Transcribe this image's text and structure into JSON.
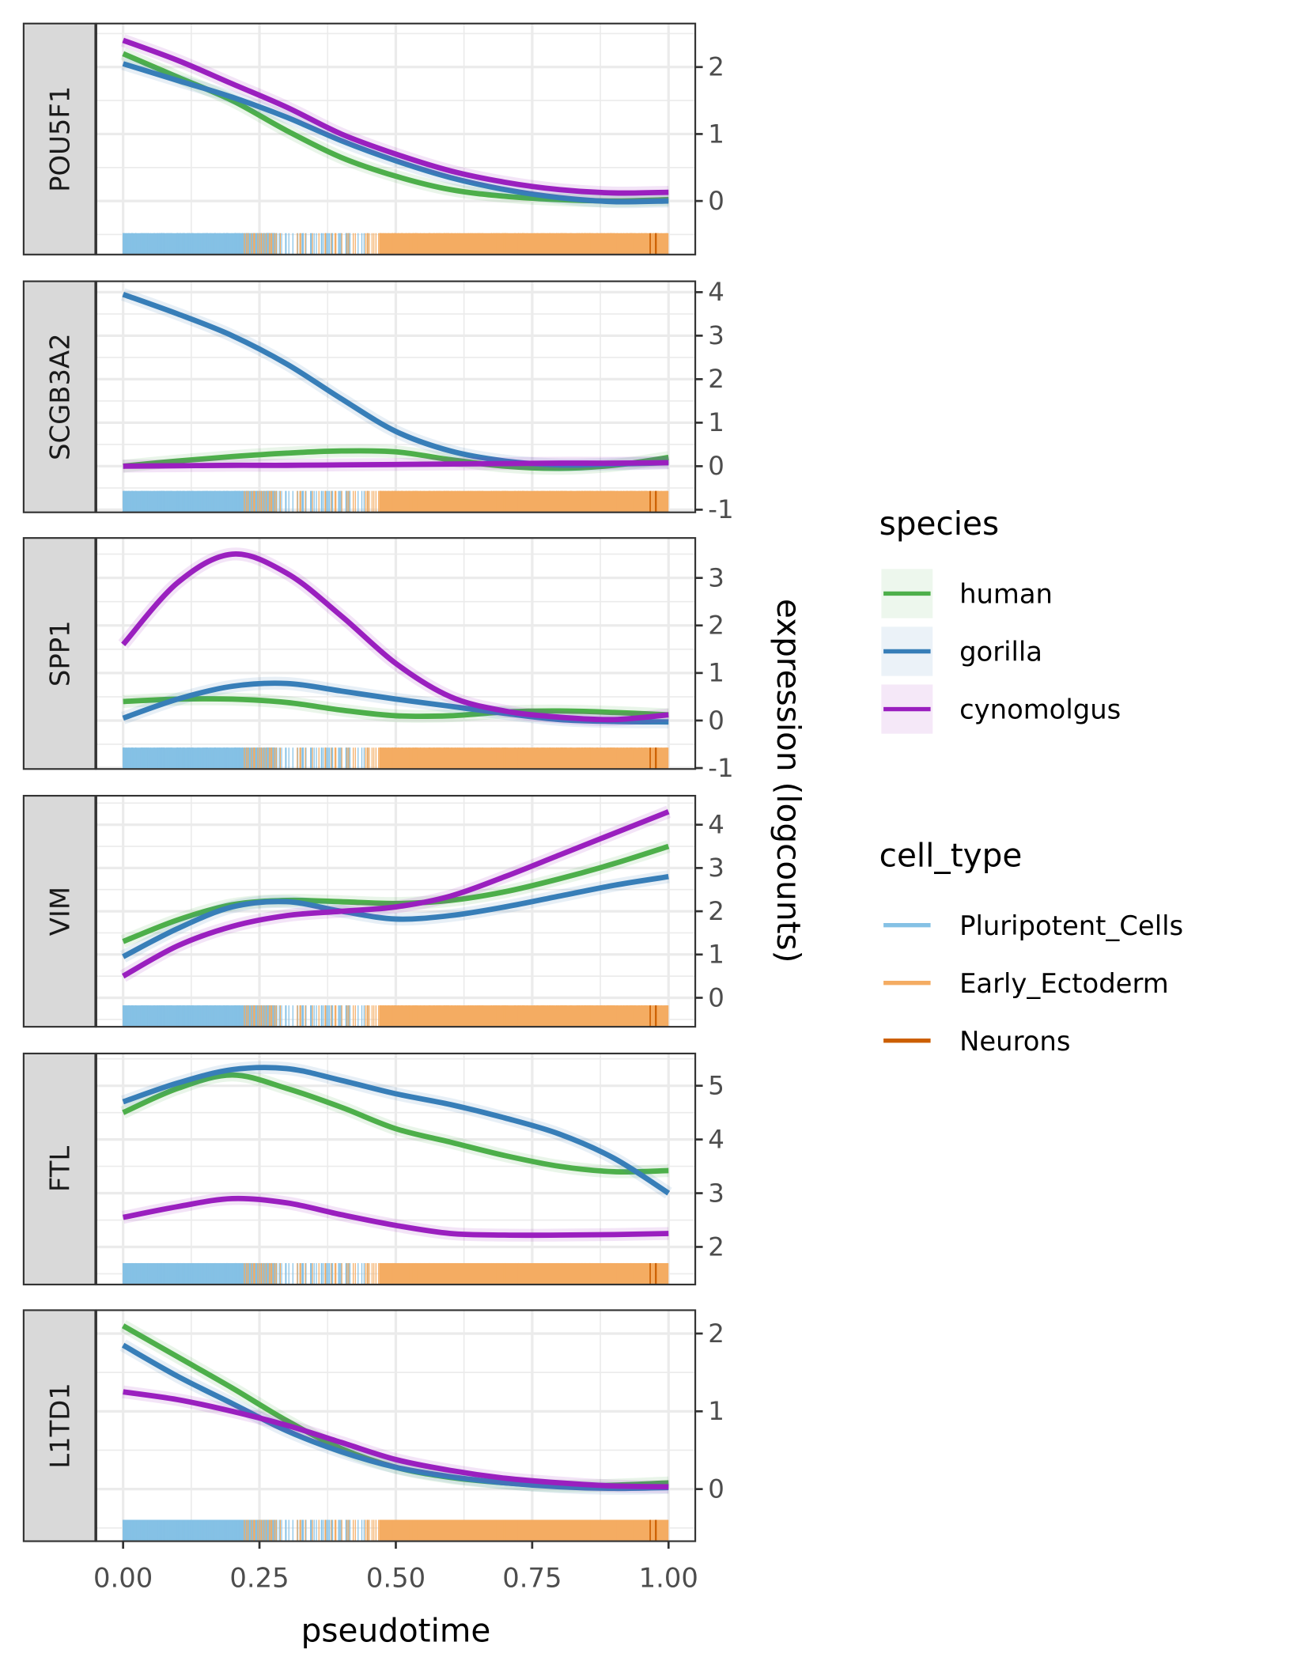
{
  "chart_data": {
    "type": "line",
    "layout": "faceted vertical panels, strip labels on left, y axis on right",
    "xlabel": "pseudotime",
    "ylabel": "expression (logcounts)",
    "xlim": [
      0,
      1
    ],
    "x_ticks": [
      "0.00",
      "0.25",
      "0.50",
      "0.75",
      "1.00"
    ],
    "x": [
      0,
      0.1,
      0.2,
      0.3,
      0.4,
      0.5,
      0.6,
      0.7,
      0.8,
      0.9,
      1.0
    ],
    "grid": true,
    "legend_placement": "right",
    "species_legend": {
      "title": "species",
      "items": [
        {
          "name": "human",
          "color": "#4DAF4A"
        },
        {
          "name": "gorilla",
          "color": "#377EB8"
        },
        {
          "name": "cynomolgus",
          "color": "#9A1FBF"
        }
      ]
    },
    "cell_type_legend": {
      "title": "cell_type",
      "items": [
        {
          "name": "Pluripotent_Cells",
          "color": "#85C1E5",
          "pseudotime_range": [
            0,
            0.45
          ]
        },
        {
          "name": "Early_Ectoderm",
          "color": "#F4AC62",
          "pseudotime_range": [
            0.22,
            1.0
          ]
        },
        {
          "name": "Neurons",
          "color": "#CC5F00",
          "pseudotime_range": [
            0.96,
            1.0
          ]
        }
      ]
    },
    "panels": [
      {
        "gene": "POU5F1",
        "ylim": [
          -0.8,
          2.65
        ],
        "y_ticks": [
          0,
          1,
          2
        ],
        "series": [
          {
            "name": "human",
            "values": [
              2.2,
              1.85,
              1.5,
              1.05,
              0.65,
              0.37,
              0.17,
              0.07,
              0.02,
              0.0,
              0.02
            ]
          },
          {
            "name": "gorilla",
            "values": [
              2.05,
              1.8,
              1.55,
              1.25,
              0.9,
              0.6,
              0.35,
              0.17,
              0.05,
              -0.01,
              0.0
            ]
          },
          {
            "name": "cynomolgus",
            "values": [
              2.4,
              2.1,
              1.75,
              1.4,
              1.0,
              0.7,
              0.45,
              0.28,
              0.17,
              0.12,
              0.13
            ]
          }
        ]
      },
      {
        "gene": "SCGB3A2",
        "ylim": [
          -1.06,
          4.25
        ],
        "y_ticks": [
          -1,
          0,
          1,
          2,
          3,
          4
        ],
        "series": [
          {
            "name": "human",
            "values": [
              0.0,
              0.12,
              0.22,
              0.3,
              0.35,
              0.33,
              0.15,
              0.0,
              -0.05,
              0.02,
              0.2
            ]
          },
          {
            "name": "gorilla",
            "values": [
              3.95,
              3.5,
              3.0,
              2.35,
              1.55,
              0.8,
              0.35,
              0.12,
              0.03,
              0.05,
              0.08
            ]
          },
          {
            "name": "cynomolgus",
            "values": [
              0.0,
              0.01,
              0.02,
              0.02,
              0.03,
              0.04,
              0.05,
              0.06,
              0.07,
              0.07,
              0.08
            ]
          }
        ]
      },
      {
        "gene": "SPP1",
        "ylim": [
          -1.02,
          3.84
        ],
        "y_ticks": [
          -1,
          0,
          1,
          2,
          3
        ],
        "series": [
          {
            "name": "human",
            "values": [
              0.4,
              0.45,
              0.45,
              0.38,
              0.22,
              0.1,
              0.1,
              0.18,
              0.2,
              0.17,
              0.12
            ]
          },
          {
            "name": "gorilla",
            "values": [
              0.05,
              0.45,
              0.72,
              0.78,
              0.62,
              0.45,
              0.3,
              0.15,
              0.02,
              -0.02,
              -0.03
            ]
          },
          {
            "name": "cynomolgus",
            "values": [
              1.6,
              2.9,
              3.5,
              3.1,
              2.2,
              1.2,
              0.5,
              0.2,
              0.07,
              0.02,
              0.12
            ]
          }
        ]
      },
      {
        "gene": "VIM",
        "ylim": [
          -0.67,
          4.67
        ],
        "y_ticks": [
          0,
          1,
          2,
          3,
          4
        ],
        "series": [
          {
            "name": "human",
            "values": [
              1.3,
              1.8,
              2.15,
              2.25,
              2.22,
              2.18,
              2.25,
              2.45,
              2.75,
              3.1,
              3.5
            ]
          },
          {
            "name": "gorilla",
            "values": [
              0.95,
              1.6,
              2.1,
              2.22,
              2.0,
              1.82,
              1.9,
              2.1,
              2.35,
              2.6,
              2.8
            ]
          },
          {
            "name": "cynomolgus",
            "values": [
              0.5,
              1.2,
              1.65,
              1.9,
              2.0,
              2.1,
              2.35,
              2.8,
              3.3,
              3.8,
              4.3
            ]
          }
        ]
      },
      {
        "gene": "FTL",
        "ylim": [
          1.3,
          5.6
        ],
        "y_ticks": [
          2,
          3,
          4,
          5
        ],
        "series": [
          {
            "name": "human",
            "values": [
              4.5,
              4.95,
              5.2,
              4.95,
              4.6,
              4.2,
              3.95,
              3.7,
              3.5,
              3.4,
              3.42
            ]
          },
          {
            "name": "gorilla",
            "values": [
              4.7,
              5.05,
              5.3,
              5.32,
              5.1,
              4.85,
              4.65,
              4.4,
              4.1,
              3.65,
              3.0
            ]
          },
          {
            "name": "cynomolgus",
            "values": [
              2.55,
              2.75,
              2.9,
              2.82,
              2.6,
              2.4,
              2.25,
              2.22,
              2.22,
              2.23,
              2.25
            ]
          }
        ]
      },
      {
        "gene": "L1TD1",
        "ylim": [
          -0.67,
          2.3
        ],
        "y_ticks": [
          0,
          1,
          2
        ],
        "series": [
          {
            "name": "human",
            "values": [
              2.1,
              1.7,
              1.3,
              0.88,
              0.52,
              0.28,
              0.15,
              0.08,
              0.04,
              0.05,
              0.08
            ]
          },
          {
            "name": "gorilla",
            "values": [
              1.85,
              1.45,
              1.1,
              0.75,
              0.48,
              0.28,
              0.16,
              0.08,
              0.03,
              0.01,
              0.02
            ]
          },
          {
            "name": "cynomolgus",
            "values": [
              1.25,
              1.15,
              1.0,
              0.82,
              0.6,
              0.38,
              0.24,
              0.14,
              0.08,
              0.04,
              0.03
            ]
          }
        ]
      }
    ]
  }
}
